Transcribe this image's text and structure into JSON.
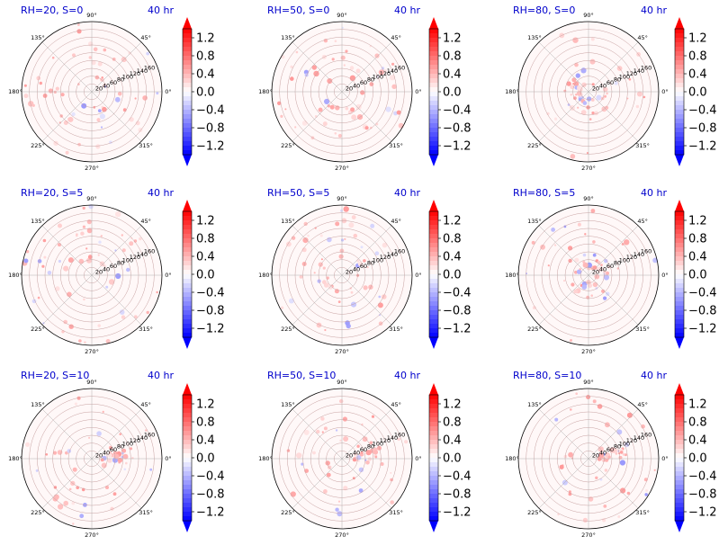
{
  "chart_data": [
    {
      "type": "heatmap",
      "projection": "polar",
      "title_left": "RH=20, S=0",
      "title_right": "40 hr",
      "pattern_seed": 11,
      "blob_density": "sparse"
    },
    {
      "type": "heatmap",
      "projection": "polar",
      "title_left": "RH=50, S=0",
      "title_right": "40 hr",
      "pattern_seed": 23,
      "blob_density": "sparse"
    },
    {
      "type": "heatmap",
      "projection": "polar",
      "title_left": "RH=80, S=0",
      "title_right": "40 hr",
      "pattern_seed": 37,
      "blob_density": "center"
    },
    {
      "type": "heatmap",
      "projection": "polar",
      "title_left": "RH=20, S=5",
      "title_right": "40 hr",
      "pattern_seed": 41,
      "blob_density": "sparse"
    },
    {
      "type": "heatmap",
      "projection": "polar",
      "title_left": "RH=50, S=5",
      "title_right": "40 hr",
      "pattern_seed": 53,
      "blob_density": "sparse"
    },
    {
      "type": "heatmap",
      "projection": "polar",
      "title_left": "RH=80, S=5",
      "title_right": "40 hr",
      "pattern_seed": 67,
      "blob_density": "center"
    },
    {
      "type": "heatmap",
      "projection": "polar",
      "title_left": "RH=20, S=10",
      "title_right": "40 hr",
      "pattern_seed": 71,
      "blob_density": "band"
    },
    {
      "type": "heatmap",
      "projection": "polar",
      "title_left": "RH=50, S=10",
      "title_right": "40 hr",
      "pattern_seed": 83,
      "blob_density": "band"
    },
    {
      "type": "heatmap",
      "projection": "polar",
      "title_left": "RH=80, S=10",
      "title_right": "40 hr",
      "pattern_seed": 97,
      "blob_density": "band"
    }
  ],
  "polar_axis": {
    "angular_ticks": [
      "0°",
      "45°",
      "90°",
      "135°",
      "180°",
      "225°",
      "270°",
      "315°"
    ],
    "angular_tick_degrees": [
      0,
      45,
      90,
      135,
      180,
      225,
      270,
      315
    ],
    "radial_ticks": [
      "20",
      "40",
      "60",
      "80",
      "100",
      "120",
      "140",
      "160"
    ],
    "radial_tick_values": [
      20,
      40,
      60,
      80,
      100,
      120,
      140,
      160
    ],
    "r_max": 180,
    "radial_label_angle_deg": 22.5
  },
  "colorbar": {
    "colormap": "bwr",
    "vmin": -1.4,
    "vmax": 1.4,
    "levels": 28,
    "extend": "both",
    "tick_labels": [
      "1.2",
      "0.8",
      "0.4",
      "0.0",
      "−0.4",
      "−0.8",
      "−1.2"
    ],
    "tick_values": [
      1.2,
      0.8,
      0.4,
      0.0,
      -0.4,
      -0.8,
      -1.2
    ]
  },
  "colors": {
    "title": "#0000cc",
    "negative": "#0000ff",
    "positive": "#ff0000",
    "zero": "#ffffff",
    "grid": "#b0b0b0"
  }
}
